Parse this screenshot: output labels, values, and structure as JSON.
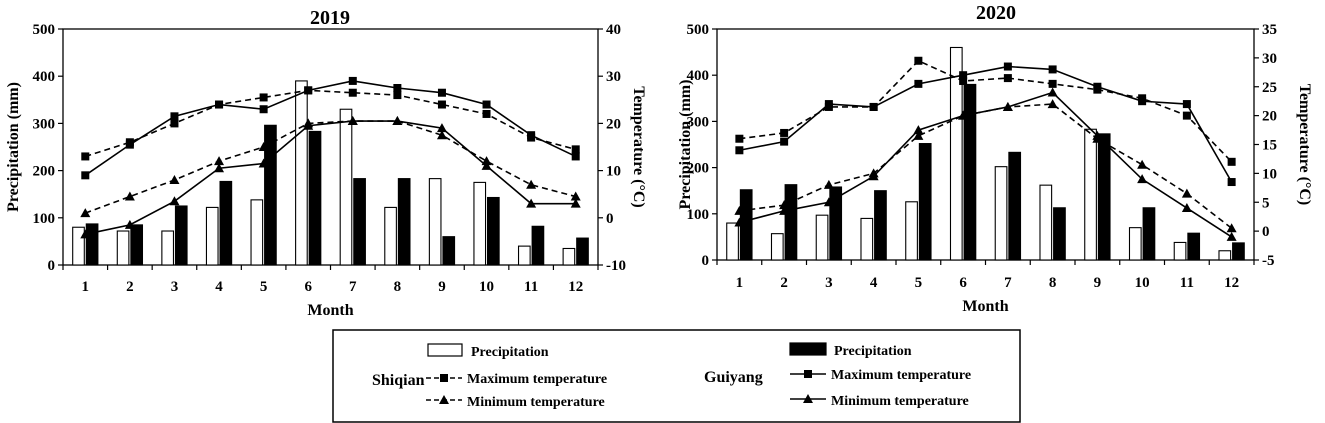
{
  "chart_data": [
    {
      "type": "bar+line",
      "title": "2019",
      "xlabel": "Month",
      "ylabel_left": "Precipitation (mm)",
      "ylabel_right": "Temperature (°C)",
      "categories": [
        "1",
        "2",
        "3",
        "4",
        "5",
        "6",
        "7",
        "8",
        "9",
        "10",
        "11",
        "12"
      ],
      "ylim_left": [
        0,
        500
      ],
      "yticks_left": [
        "0",
        "100",
        "200",
        "300",
        "400",
        "500"
      ],
      "ylim_right": [
        -10,
        40
      ],
      "yticks_right": [
        "-10",
        "0",
        "10",
        "20",
        "30",
        "40"
      ],
      "bars": [
        {
          "name": "Shiqian Precipitation",
          "values": [
            80,
            72,
            72,
            122,
            138,
            390,
            330,
            122,
            183,
            175,
            40,
            35
          ]
        },
        {
          "name": "Guiyang Precipitation",
          "values": [
            87,
            85,
            125,
            177,
            296,
            283,
            183,
            183,
            60,
            143,
            82,
            57
          ]
        }
      ],
      "lines": [
        {
          "name": "Shiqian Maximum temperature",
          "values": [
            13,
            16,
            20,
            24,
            25.5,
            27,
            26.5,
            26,
            24,
            22,
            17,
            14.5
          ]
        },
        {
          "name": "Shiqian Minimum temperature",
          "values": [
            1,
            4.5,
            8,
            12,
            15,
            20,
            20.5,
            20.5,
            17.5,
            12,
            7,
            4.5
          ]
        },
        {
          "name": "Guiyang Maximum temperature",
          "values": [
            9,
            15.5,
            21.5,
            24,
            23,
            27,
            29,
            27.5,
            26.5,
            24,
            17.5,
            13
          ]
        },
        {
          "name": "Guiyang Minimum temperature",
          "values": [
            -3.5,
            -1.5,
            3.5,
            10.5,
            11.5,
            19.5,
            20.5,
            20.5,
            19,
            11,
            3,
            3
          ]
        }
      ]
    },
    {
      "type": "bar+line",
      "title": "2020",
      "xlabel": "Month",
      "ylabel_left": "Precipitation (mm)",
      "ylabel_right": "Temperature (°C)",
      "categories": [
        "1",
        "2",
        "3",
        "4",
        "5",
        "6",
        "7",
        "8",
        "9",
        "10",
        "11",
        "12"
      ],
      "ylim_left": [
        0,
        500
      ],
      "yticks_left": [
        "0",
        "100",
        "200",
        "300",
        "400",
        "500"
      ],
      "ylim_right": [
        -5,
        35
      ],
      "yticks_right": [
        "-5",
        "0",
        "5",
        "10",
        "15",
        "20",
        "25",
        "30",
        "35"
      ],
      "bars": [
        {
          "name": "Shiqian Precipitation",
          "values": [
            80,
            57,
            97,
            90,
            126,
            460,
            202,
            162,
            283,
            70,
            38,
            20
          ]
        },
        {
          "name": "Guiyang Precipitation",
          "values": [
            152,
            163,
            158,
            150,
            252,
            380,
            233,
            113,
            273,
            113,
            58,
            37
          ]
        }
      ],
      "lines": [
        {
          "name": "Shiqian Maximum temperature",
          "values": [
            16,
            17,
            21.5,
            21.5,
            29.5,
            26,
            26.5,
            25.5,
            24.5,
            23,
            20,
            12
          ]
        },
        {
          "name": "Shiqian Minimum temperature",
          "values": [
            3.5,
            4.5,
            8,
            10,
            16.5,
            20,
            21.5,
            22,
            16,
            11.5,
            6.5,
            0.5
          ]
        },
        {
          "name": "Guiyang Maximum temperature",
          "values": [
            14,
            15.5,
            22,
            21.5,
            25.5,
            27,
            28.5,
            28,
            25,
            22.5,
            22,
            8.5
          ]
        },
        {
          "name": "Guiyang Minimum temperature",
          "values": [
            1.5,
            3.5,
            5,
            9.5,
            17.5,
            20,
            21.5,
            24,
            16.5,
            9,
            4,
            -1
          ]
        }
      ]
    }
  ],
  "legend": {
    "shiqian_label": "Shiqian",
    "guiyang_label": "Guiyang",
    "precipitation": "Precipitation",
    "max_temp": "Maximum temperature",
    "min_temp": "Minimum temperature"
  }
}
